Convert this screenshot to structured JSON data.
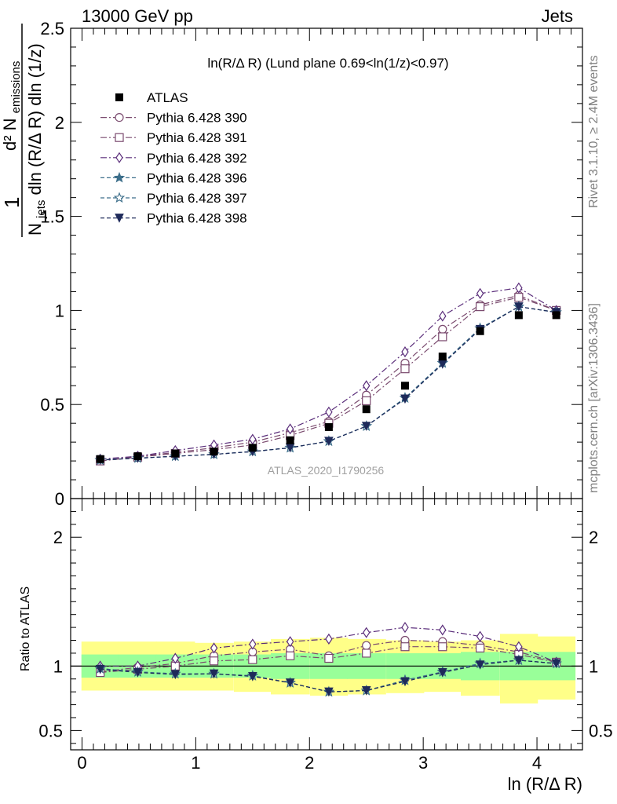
{
  "header": {
    "left": "13000 GeV pp",
    "right": "Jets"
  },
  "side": {
    "rivet": "Rivet 3.1.10, ≥ 2.4M events",
    "mcplots": "mcplots.cern.ch [arXiv:1306.3436]"
  },
  "chart_data": [
    {
      "type": "scatter",
      "title": "ln(R/Δ R) (Lund plane 0.69<ln(1/z)<0.97)",
      "watermark": "ATLAS_2020_I1790256",
      "xlabel": "ln (R/Δ R)",
      "ylabel_main": "1",
      "ylabel_frac_num": "d² N",
      "ylabel_frac_num_sub": "emissions",
      "ylabel_frac_den": "N",
      "ylabel_frac_den_sub": "jets",
      "ylabel_frac_den_rest": "dln (R/Δ R) dln (1/z)",
      "xlim": [
        -0.1,
        4.4
      ],
      "ylim": [
        0,
        2.5
      ],
      "yticks": [
        "0",
        "0.5",
        "1",
        "1.5",
        "2",
        "2.5"
      ],
      "x": [
        0.16,
        0.49,
        0.82,
        1.16,
        1.5,
        1.83,
        2.17,
        2.5,
        2.84,
        3.17,
        3.5,
        3.84,
        4.17
      ],
      "atlas": {
        "name": "ATLAS",
        "values": [
          0.21,
          0.225,
          0.24,
          0.25,
          0.27,
          0.31,
          0.38,
          0.475,
          0.6,
          0.755,
          0.89,
          0.975,
          0.975
        ]
      },
      "series": [
        {
          "name": "Pythia 6.428 390",
          "color": "#7a4a6e",
          "dash": "8,3,2,3",
          "marker": "circle",
          "values": [
            0.2,
            0.225,
            0.245,
            0.27,
            0.3,
            0.35,
            0.41,
            0.55,
            0.72,
            0.9,
            1.03,
            1.08,
            1.0
          ]
        },
        {
          "name": "Pythia 6.428 391",
          "color": "#7a4a6e",
          "dash": "8,3,2,3",
          "marker": "square",
          "values": [
            0.2,
            0.22,
            0.24,
            0.26,
            0.285,
            0.335,
            0.4,
            0.52,
            0.69,
            0.86,
            1.02,
            1.07,
            1.0
          ]
        },
        {
          "name": "Pythia 6.428 392",
          "color": "#5a2d7a",
          "dash": "8,3,2,3",
          "marker": "diamond",
          "values": [
            0.21,
            0.225,
            0.255,
            0.285,
            0.315,
            0.37,
            0.46,
            0.6,
            0.78,
            0.97,
            1.09,
            1.12,
            1.0
          ]
        },
        {
          "name": "Pythia 6.428 396",
          "color": "#3c6e8a",
          "dash": "5,3",
          "marker": "star",
          "values": [
            0.205,
            0.215,
            0.225,
            0.235,
            0.25,
            0.27,
            0.305,
            0.385,
            0.535,
            0.72,
            0.905,
            1.02,
            0.99
          ]
        },
        {
          "name": "Pythia 6.428 397",
          "color": "#3c6e8a",
          "dash": "5,3",
          "marker": "star-open",
          "values": [
            0.205,
            0.215,
            0.225,
            0.235,
            0.25,
            0.27,
            0.305,
            0.385,
            0.535,
            0.72,
            0.905,
            1.02,
            0.99
          ]
        },
        {
          "name": "Pythia 6.428 398",
          "color": "#1e2a5a",
          "dash": "5,3",
          "marker": "triangle-down",
          "values": [
            0.205,
            0.215,
            0.225,
            0.235,
            0.25,
            0.27,
            0.305,
            0.385,
            0.53,
            0.715,
            0.9,
            1.02,
            0.99
          ]
        }
      ]
    },
    {
      "type": "scatter",
      "ylabel": "Ratio to ATLAS",
      "ylim": [
        0.35,
        2.3
      ],
      "yticks": [
        "0.5",
        "1",
        "2"
      ],
      "xticks": [
        "0",
        "1",
        "2",
        "3",
        "4"
      ],
      "band_inner": [
        [
          0.91,
          1.09
        ],
        [
          0.91,
          1.09
        ],
        [
          0.91,
          1.09
        ],
        [
          0.91,
          1.09
        ],
        [
          0.91,
          1.09
        ],
        [
          0.9,
          1.1
        ],
        [
          0.9,
          1.1
        ],
        [
          0.9,
          1.1
        ],
        [
          0.9,
          1.1
        ],
        [
          0.9,
          1.1
        ],
        [
          0.89,
          1.11
        ],
        [
          0.89,
          1.11
        ],
        [
          0.89,
          1.11
        ]
      ],
      "band_outer": [
        [
          0.81,
          1.19
        ],
        [
          0.81,
          1.19
        ],
        [
          0.81,
          1.19
        ],
        [
          0.81,
          1.18
        ],
        [
          0.8,
          1.19
        ],
        [
          0.78,
          1.21
        ],
        [
          0.77,
          1.22
        ],
        [
          0.78,
          1.21
        ],
        [
          0.79,
          1.2
        ],
        [
          0.8,
          1.19
        ],
        [
          0.77,
          1.2
        ],
        [
          0.71,
          1.25
        ],
        [
          0.74,
          1.23
        ]
      ],
      "series_ratio": [
        [
          0.955,
          0.99,
          1.02,
          1.08,
          1.11,
          1.13,
          1.08,
          1.16,
          1.2,
          1.19,
          1.16,
          1.11,
          1.03
        ],
        [
          0.95,
          0.975,
          1.0,
          1.04,
          1.05,
          1.08,
          1.06,
          1.1,
          1.15,
          1.15,
          1.14,
          1.09,
          1.03
        ],
        [
          1.0,
          1.0,
          1.06,
          1.14,
          1.17,
          1.19,
          1.21,
          1.26,
          1.3,
          1.28,
          1.23,
          1.15,
          1.03
        ],
        [
          0.98,
          0.955,
          0.94,
          0.94,
          0.925,
          0.87,
          0.8,
          0.81,
          0.89,
          0.955,
          1.02,
          1.045,
          1.02
        ],
        [
          0.98,
          0.955,
          0.94,
          0.94,
          0.925,
          0.87,
          0.8,
          0.81,
          0.89,
          0.955,
          1.02,
          1.045,
          1.02
        ],
        [
          0.975,
          0.95,
          0.935,
          0.94,
          0.92,
          0.87,
          0.8,
          0.81,
          0.88,
          0.95,
          1.01,
          1.045,
          1.02
        ]
      ]
    }
  ]
}
